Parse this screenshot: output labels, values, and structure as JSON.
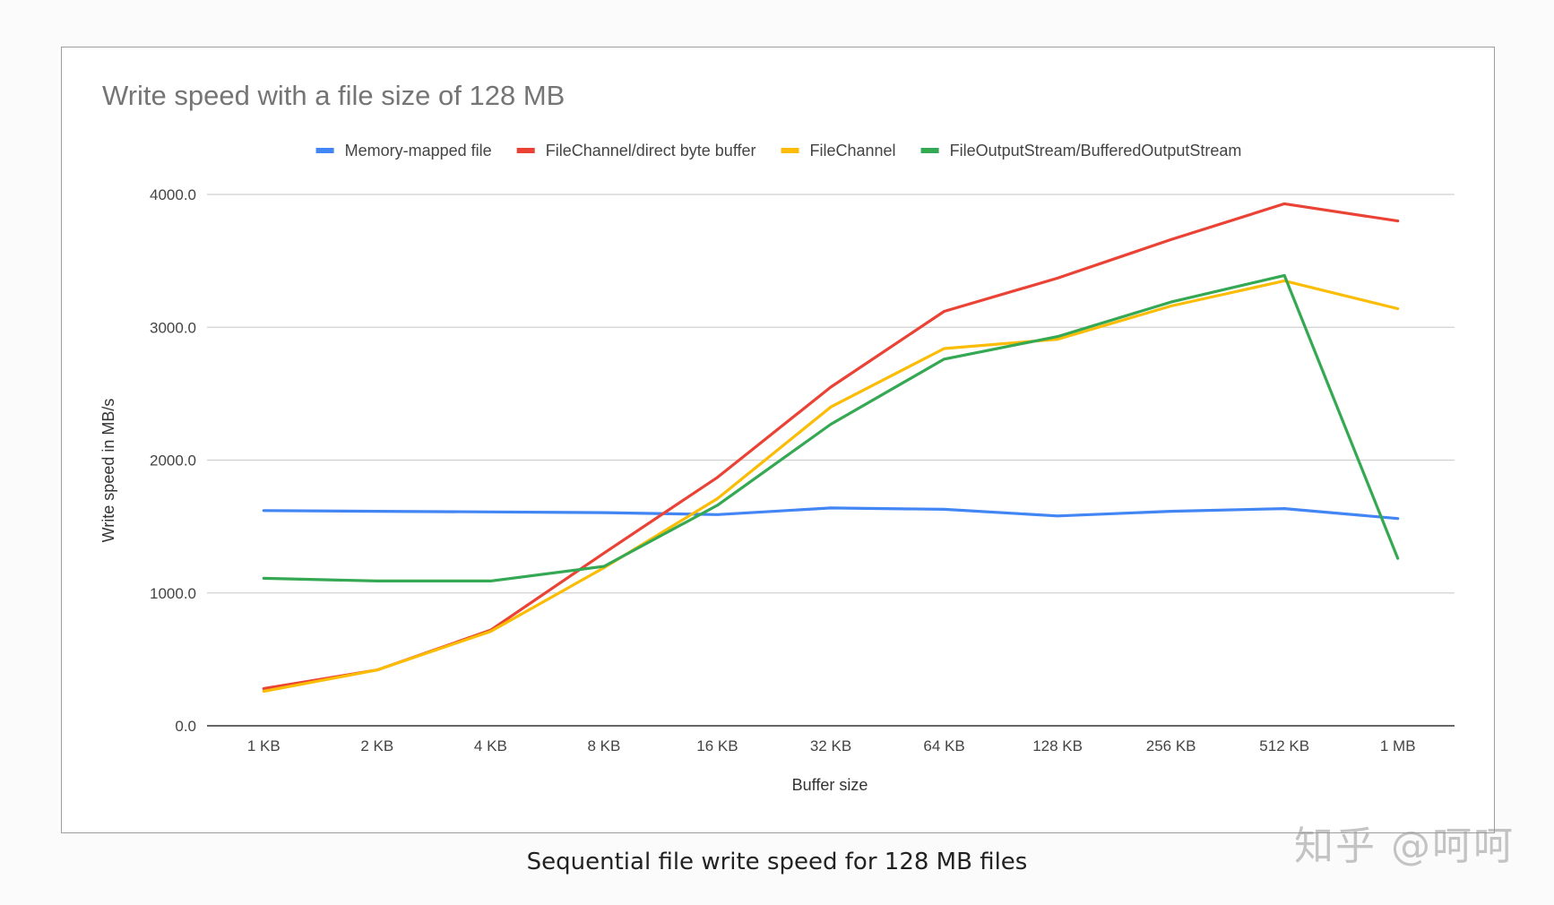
{
  "chart_data": {
    "type": "line",
    "title": "Write speed with a file size of 128 MB",
    "xlabel": "Buffer size",
    "ylabel": "Write speed in MB/s",
    "categories": [
      "1 KB",
      "2 KB",
      "4 KB",
      "8 KB",
      "16 KB",
      "32 KB",
      "64 KB",
      "128 KB",
      "256 KB",
      "512 KB",
      "1 MB"
    ],
    "yticks": [
      "0.0",
      "1000.0",
      "2000.0",
      "3000.0",
      "4000.0"
    ],
    "ylim": [
      0,
      4000
    ],
    "grid": true,
    "legend_position": "top",
    "series": [
      {
        "name": "Memory-mapped file",
        "color": "#4285f4",
        "values": [
          1620,
          1615,
          1610,
          1605,
          1590,
          1640,
          1630,
          1580,
          1615,
          1635,
          1560
        ]
      },
      {
        "name": "FileChannel/direct byte buffer",
        "color": "#ea4335",
        "values": [
          280,
          420,
          720,
          1300,
          1870,
          2550,
          3120,
          3370,
          3660,
          3930,
          3800
        ]
      },
      {
        "name": "FileChannel",
        "color": "#fbbc04",
        "values": [
          260,
          420,
          710,
          1190,
          1710,
          2400,
          2840,
          2910,
          3160,
          3350,
          3140
        ]
      },
      {
        "name": "FileOutputStream/BufferedOutputStream",
        "color": "#34a853",
        "values": [
          1110,
          1090,
          1090,
          1200,
          1660,
          2270,
          2760,
          2930,
          3190,
          3390,
          1260
        ]
      }
    ]
  },
  "caption": "Sequential file write speed for 128 MB files",
  "watermark": "知乎 @呵呵"
}
